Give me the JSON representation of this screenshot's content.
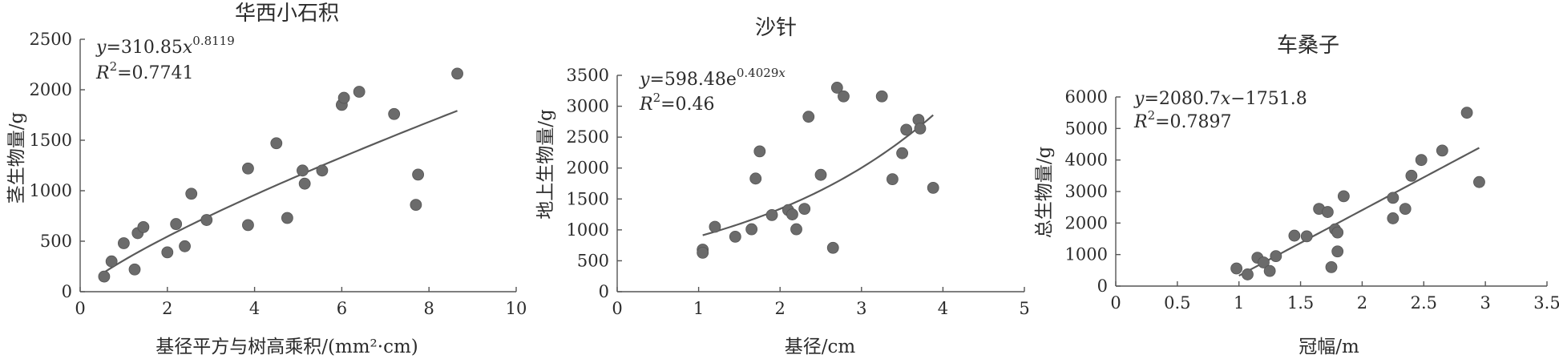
{
  "figure": {
    "panels": [
      {
        "title": "华西小石积",
        "xlabel": "基径平方与树高乘积/(mm²·cm)",
        "ylabel": "茎生物量/g",
        "equation": {
          "y": "y",
          "eq": "=310.85",
          "var": "x",
          "sup": "0.8119"
        },
        "r2": {
          "R": "R",
          "two": "2",
          "value": "=0.7741"
        }
      },
      {
        "title": "沙针",
        "xlabel": "基径/cm",
        "ylabel": "地上生物量/g",
        "equation": {
          "y": "y",
          "eq": "=598.48e",
          "sup": "0.4029",
          "var": "x"
        },
        "r2": {
          "R": "R",
          "two": "2",
          "value": "=0.46"
        }
      },
      {
        "title": "车桑子",
        "xlabel": "冠幅/m",
        "ylabel": "总生物量/g",
        "equation": {
          "y": "y",
          "eq": "=2080.7",
          "var": "x",
          "tail": "−1751.8"
        },
        "r2": {
          "R": "R",
          "two": "2",
          "value": "=0.7897"
        }
      }
    ]
  },
  "chart_data": [
    {
      "type": "scatter",
      "title": "华西小石积",
      "xlabel": "基径平方与树高乘积/(mm²·cm)",
      "ylabel": "茎生物量/g",
      "xlim": [
        0,
        10
      ],
      "ylim": [
        0,
        2500
      ],
      "xticks": [
        "0",
        "2",
        "4",
        "6",
        "8",
        "10"
      ],
      "yticks": [
        "0",
        "500",
        "1000",
        "1500",
        "2000",
        "2500"
      ],
      "points": [
        [
          0.55,
          150
        ],
        [
          0.72,
          300
        ],
        [
          1.0,
          480
        ],
        [
          1.25,
          220
        ],
        [
          1.32,
          580
        ],
        [
          1.45,
          640
        ],
        [
          2.0,
          390
        ],
        [
          2.2,
          670
        ],
        [
          2.4,
          450
        ],
        [
          2.55,
          970
        ],
        [
          2.9,
          710
        ],
        [
          3.85,
          660
        ],
        [
          3.85,
          1220
        ],
        [
          4.5,
          1470
        ],
        [
          4.75,
          730
        ],
        [
          5.1,
          1200
        ],
        [
          5.15,
          1070
        ],
        [
          5.55,
          1200
        ],
        [
          6.0,
          1850
        ],
        [
          6.05,
          1920
        ],
        [
          6.4,
          1980
        ],
        [
          7.2,
          1760
        ],
        [
          7.7,
          860
        ],
        [
          7.75,
          1160
        ],
        [
          8.65,
          2160
        ]
      ],
      "fit": {
        "type": "power",
        "a": 310.85,
        "b": 0.8119,
        "xrange": [
          0.55,
          8.65
        ]
      },
      "grid": false
    },
    {
      "type": "scatter",
      "title": "沙针",
      "xlabel": "基径/cm",
      "ylabel": "地上生物量/g",
      "xlim": [
        0,
        5
      ],
      "ylim": [
        0,
        3500
      ],
      "xticks": [
        "0",
        "1",
        "2",
        "3",
        "4",
        "5"
      ],
      "yticks": [
        "0",
        "500",
        "1000",
        "1500",
        "2000",
        "2500",
        "3000",
        "3500"
      ],
      "points": [
        [
          1.05,
          680
        ],
        [
          1.05,
          630
        ],
        [
          1.2,
          1050
        ],
        [
          1.45,
          890
        ],
        [
          1.65,
          1010
        ],
        [
          1.7,
          1830
        ],
        [
          1.75,
          2270
        ],
        [
          1.9,
          1240
        ],
        [
          2.1,
          1320
        ],
        [
          2.15,
          1250
        ],
        [
          2.2,
          1010
        ],
        [
          2.3,
          1340
        ],
        [
          2.35,
          2830
        ],
        [
          2.5,
          1890
        ],
        [
          2.65,
          710
        ],
        [
          2.7,
          3300
        ],
        [
          2.78,
          3160
        ],
        [
          3.25,
          3160
        ],
        [
          3.38,
          1820
        ],
        [
          3.5,
          2240
        ],
        [
          3.55,
          2620
        ],
        [
          3.7,
          2780
        ],
        [
          3.72,
          2640
        ],
        [
          3.88,
          1680
        ]
      ],
      "fit": {
        "type": "exponential",
        "a": 598.48,
        "b": 0.4029,
        "xrange": [
          1.05,
          3.88
        ]
      },
      "grid": false
    },
    {
      "type": "scatter",
      "title": "车桑子",
      "xlabel": "冠幅/m",
      "ylabel": "总生物量/g",
      "xlim": [
        0,
        3.5
      ],
      "ylim": [
        0,
        6000
      ],
      "xticks": [
        "0",
        "0.5",
        "1",
        "1.5",
        "2",
        "2.5",
        "3",
        "3.5"
      ],
      "yticks": [
        "0",
        "1000",
        "2000",
        "3000",
        "4000",
        "5000",
        "6000"
      ],
      "points": [
        [
          0.98,
          560
        ],
        [
          1.07,
          370
        ],
        [
          1.15,
          900
        ],
        [
          1.2,
          750
        ],
        [
          1.25,
          480
        ],
        [
          1.3,
          950
        ],
        [
          1.45,
          1600
        ],
        [
          1.55,
          1580
        ],
        [
          1.65,
          2450
        ],
        [
          1.72,
          2350
        ],
        [
          1.75,
          600
        ],
        [
          1.78,
          1800
        ],
        [
          1.8,
          1700
        ],
        [
          1.8,
          1100
        ],
        [
          1.85,
          2850
        ],
        [
          2.25,
          2800
        ],
        [
          2.25,
          2150
        ],
        [
          2.35,
          2450
        ],
        [
          2.4,
          3500
        ],
        [
          2.48,
          4000
        ],
        [
          2.65,
          4300
        ],
        [
          2.85,
          5500
        ],
        [
          2.95,
          3300
        ]
      ],
      "fit": {
        "type": "linear",
        "a": 2080.7,
        "b": -1751.8,
        "xrange": [
          1.0,
          2.95
        ]
      },
      "grid": false
    }
  ]
}
